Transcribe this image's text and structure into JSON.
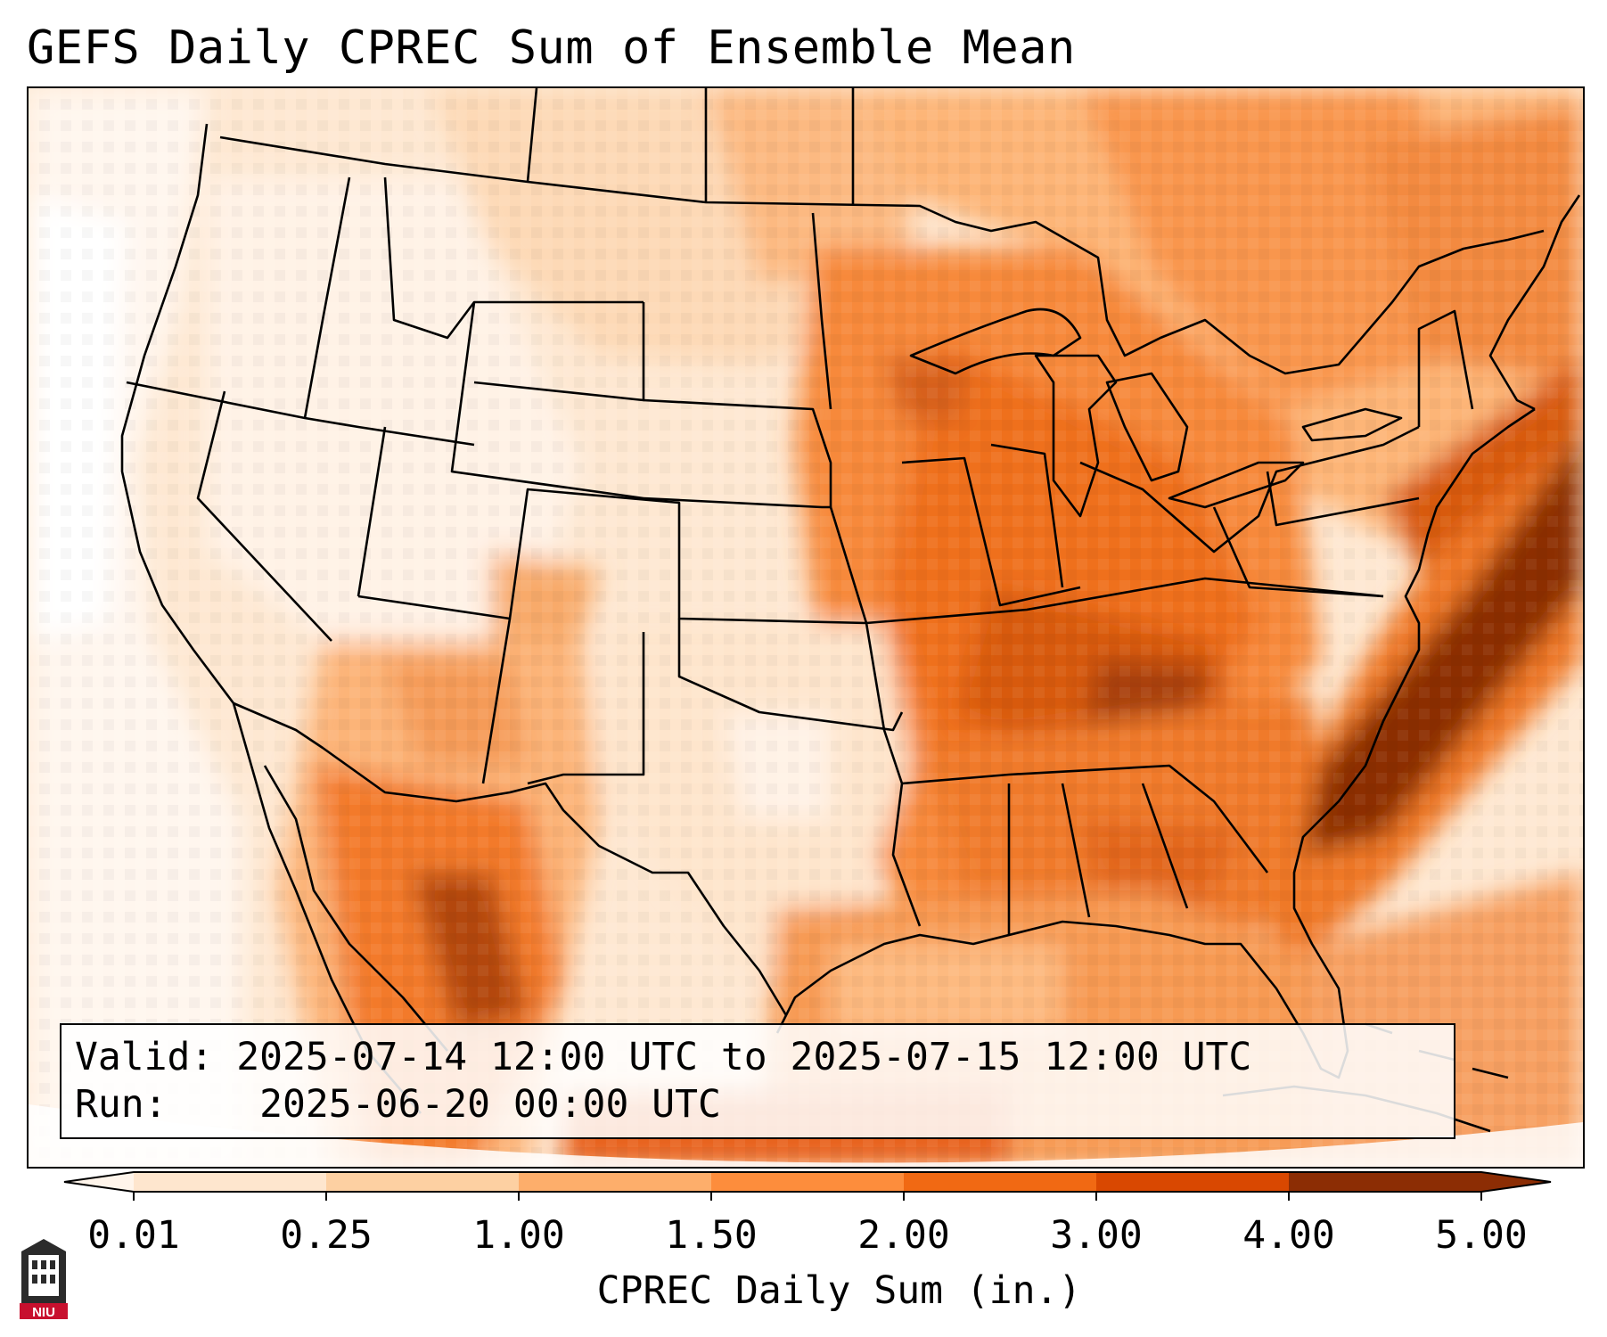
{
  "title": "GEFS Daily CPREC Sum of Ensemble Mean",
  "info": {
    "valid_label": "Valid:",
    "valid_value": "2025-07-14 12:00 UTC to 2025-07-15 12:00 UTC",
    "run_label": "Run:",
    "run_value": "2025-06-20 00:00 UTC"
  },
  "colorbar": {
    "label": "CPREC Daily Sum (in.)",
    "ticks": [
      "0.01",
      "0.25",
      "1.00",
      "1.50",
      "2.00",
      "3.00",
      "4.00",
      "5.00"
    ],
    "colors": [
      "#fff5eb",
      "#fee6ce",
      "#fdd0a2",
      "#fdae6b",
      "#fd8d3c",
      "#f16913",
      "#d94801",
      "#8c2d04"
    ],
    "extend": "both"
  },
  "logo": {
    "text": "NIU",
    "icon": "niu-logo-icon"
  },
  "map": {
    "projection": "lambert-conformal",
    "region": "CONUS",
    "features": [
      "coastlines",
      "country-borders",
      "state-borders"
    ]
  }
}
